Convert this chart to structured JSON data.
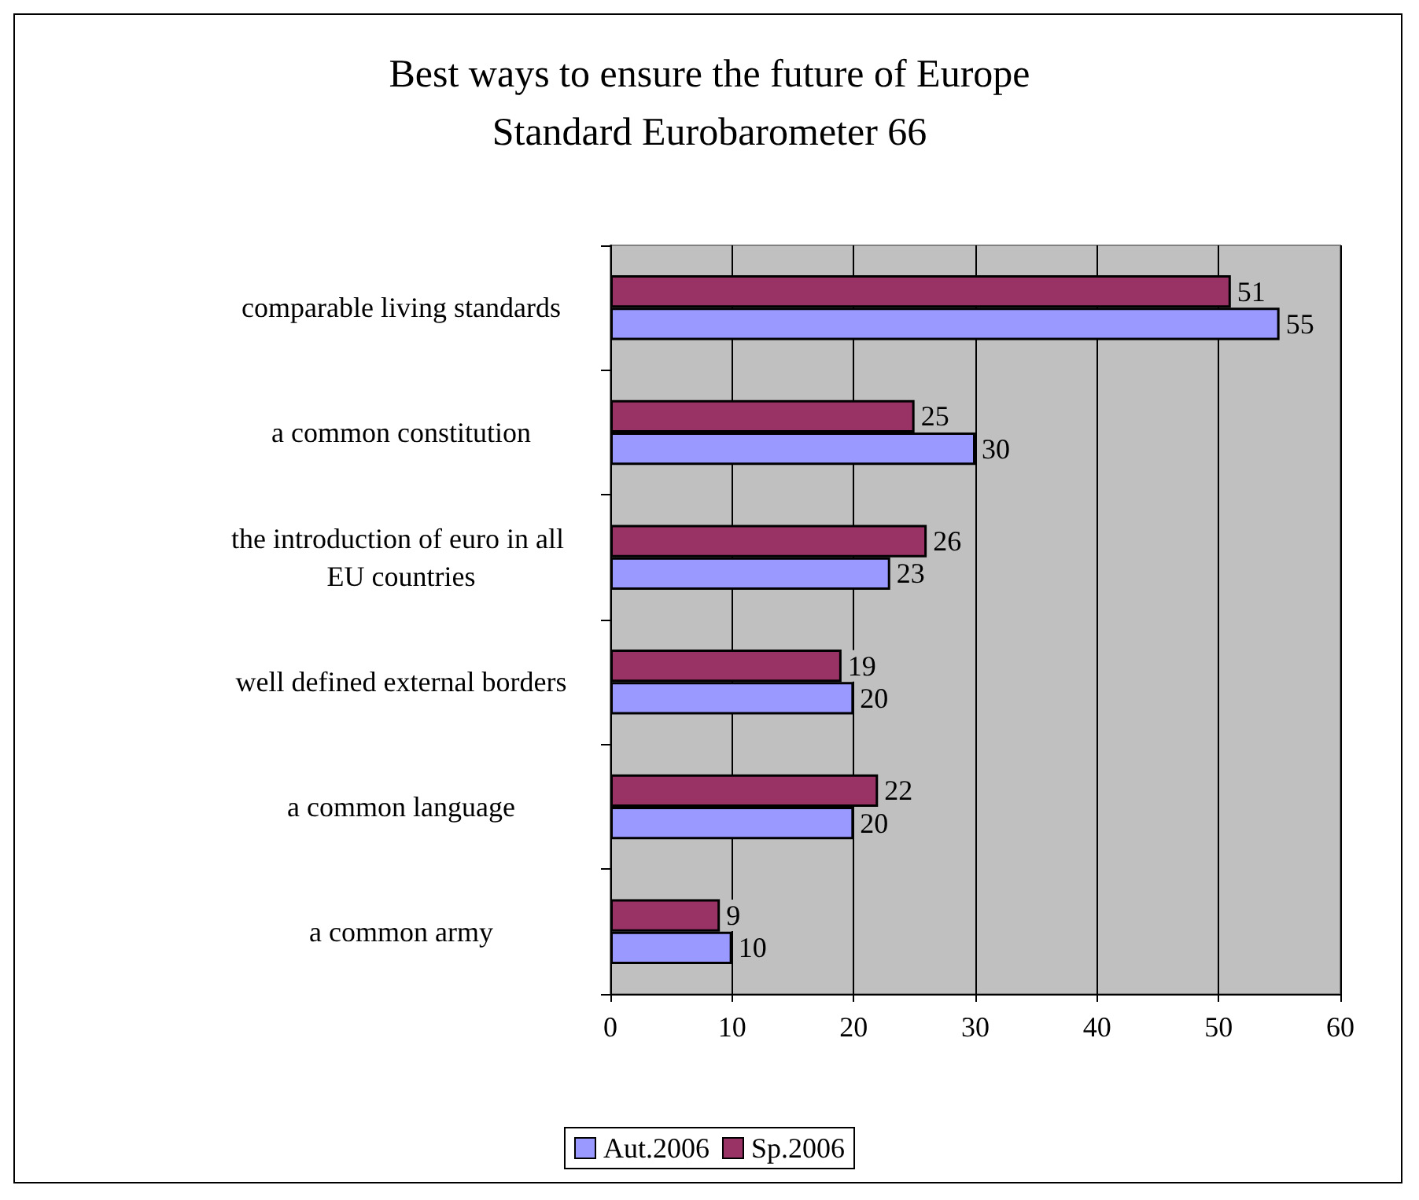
{
  "chart_data": {
    "type": "bar",
    "orientation": "horizontal",
    "title": "Best ways to ensure the future of Europe",
    "subtitle": "Standard Eurobarometer 66",
    "categories": [
      "comparable living standards",
      "a common constitution",
      "the introduction of euro in all EU countries",
      "well defined external borders",
      "a common language",
      "a common army"
    ],
    "series": [
      {
        "name": "Aut.2006",
        "color": "#9999ff",
        "values": [
          55,
          30,
          23,
          20,
          20,
          10
        ]
      },
      {
        "name": "Sp.2006",
        "color": "#993366",
        "values": [
          51,
          25,
          26,
          19,
          22,
          9
        ]
      }
    ],
    "xlim": [
      0,
      60
    ],
    "xticks": [
      0,
      10,
      20,
      30,
      40,
      50,
      60
    ],
    "grid": "x",
    "legend": "bottom",
    "data_labels": true
  }
}
